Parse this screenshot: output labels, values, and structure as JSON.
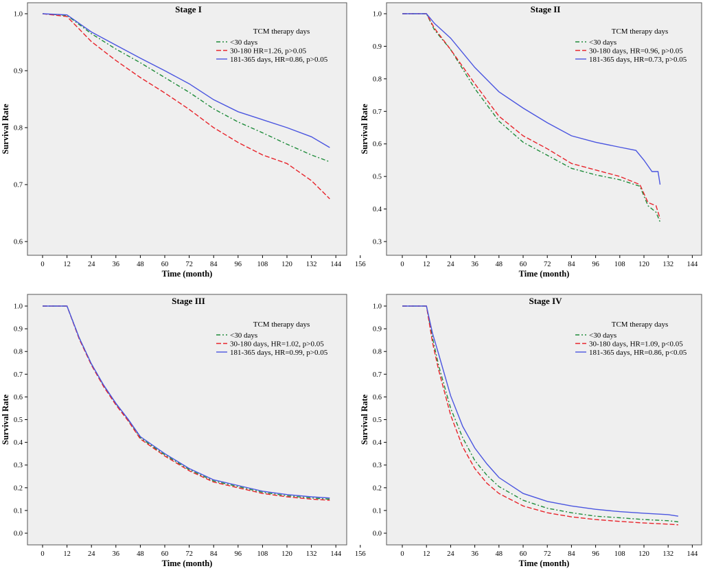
{
  "chart_data": [
    {
      "type": "line",
      "title": "Stage I",
      "xlabel": "Time (month)",
      "ylabel": "Survival Rate",
      "xlim": [
        0,
        156
      ],
      "xticks": [
        0,
        12,
        24,
        36,
        48,
        60,
        72,
        84,
        96,
        108,
        120,
        132,
        144,
        156
      ],
      "ylim": [
        0.6,
        1.0
      ],
      "yticks": [
        0.6,
        0.7,
        0.8,
        0.9,
        1.0
      ],
      "ytick_labels": [
        "0.6",
        "0.7",
        "0.8",
        "0.9",
        "1.0"
      ],
      "legend_title": "TCM therapy days",
      "series": [
        {
          "name": "<30 days",
          "color": "#1e8b3a",
          "dash": "dashdot",
          "x": [
            0,
            12,
            24,
            36,
            48,
            60,
            72,
            84,
            96,
            108,
            120,
            132,
            141
          ],
          "y": [
            1.0,
            0.997,
            0.965,
            0.938,
            0.914,
            0.888,
            0.862,
            0.833,
            0.81,
            0.791,
            0.771,
            0.752,
            0.74
          ]
        },
        {
          "name": "30-180 HR=1.26, p>0.05",
          "color": "#e8232a",
          "dash": "longdash",
          "x": [
            0,
            12,
            24,
            36,
            48,
            60,
            72,
            84,
            96,
            108,
            120,
            132,
            141
          ],
          "y": [
            1.0,
            0.995,
            0.951,
            0.918,
            0.888,
            0.861,
            0.832,
            0.8,
            0.774,
            0.752,
            0.737,
            0.707,
            0.675
          ]
        },
        {
          "name": "181-365 days, HR=0.86, p>0.05",
          "color": "#4a55e0",
          "dash": "solid",
          "x": [
            0,
            12,
            24,
            36,
            48,
            60,
            72,
            84,
            96,
            108,
            120,
            132,
            141
          ],
          "y": [
            1.0,
            0.998,
            0.968,
            0.945,
            0.922,
            0.9,
            0.877,
            0.849,
            0.828,
            0.814,
            0.8,
            0.784,
            0.765
          ]
        }
      ]
    },
    {
      "type": "line",
      "title": "Stage II",
      "xlabel": "Time (month)",
      "ylabel": "Survival Rate",
      "xlim": [
        0,
        144
      ],
      "xticks": [
        0,
        12,
        24,
        36,
        48,
        60,
        72,
        84,
        96,
        108,
        120,
        132,
        144
      ],
      "ylim": [
        0.3,
        1.0
      ],
      "yticks": [
        0.3,
        0.4,
        0.5,
        0.6,
        0.7,
        0.8,
        0.9,
        1.0
      ],
      "ytick_labels": [
        "0.3",
        "0.4",
        "0.5",
        "0.6",
        "0.7",
        "0.8",
        "0.9",
        "1.0"
      ],
      "legend_title": "TCM therapy days",
      "series": [
        {
          "name": "<30 days",
          "color": "#1e8b3a",
          "dash": "dashdot",
          "x": [
            0,
            12,
            16,
            24,
            36,
            48,
            60,
            72,
            84,
            96,
            108,
            118,
            122,
            126,
            128
          ],
          "y": [
            1.0,
            1.0,
            0.95,
            0.89,
            0.77,
            0.67,
            0.605,
            0.565,
            0.525,
            0.505,
            0.49,
            0.47,
            0.41,
            0.39,
            0.36
          ]
        },
        {
          "name": "30-180 days, HR=0.96, p>0.05",
          "color": "#e8232a",
          "dash": "longdash",
          "x": [
            0,
            12,
            16,
            24,
            36,
            48,
            60,
            72,
            84,
            96,
            108,
            118,
            122,
            126,
            128
          ],
          "y": [
            1.0,
            1.0,
            0.955,
            0.89,
            0.785,
            0.685,
            0.625,
            0.585,
            0.54,
            0.52,
            0.5,
            0.475,
            0.42,
            0.41,
            0.37
          ]
        },
        {
          "name": "181-365 days, HR=0.73, p>0.05",
          "color": "#4a55e0",
          "dash": "solid",
          "x": [
            0,
            12,
            16,
            24,
            36,
            48,
            60,
            72,
            84,
            96,
            108,
            116,
            120,
            124,
            127,
            128
          ],
          "y": [
            1.0,
            1.0,
            0.97,
            0.925,
            0.835,
            0.76,
            0.71,
            0.665,
            0.625,
            0.605,
            0.59,
            0.58,
            0.55,
            0.515,
            0.515,
            0.475
          ]
        }
      ]
    },
    {
      "type": "line",
      "title": "Stage III",
      "xlabel": "Time (month)",
      "ylabel": "Survival Rate",
      "xlim": [
        0,
        156
      ],
      "xticks": [
        0,
        12,
        24,
        36,
        48,
        60,
        72,
        84,
        96,
        108,
        120,
        132,
        144,
        156
      ],
      "ylim": [
        0.0,
        1.0
      ],
      "yticks": [
        0,
        0.1,
        0.2,
        0.3,
        0.4,
        0.5,
        0.6,
        0.7,
        0.8,
        0.9,
        1.0
      ],
      "ytick_labels": [
        "0.0",
        "0.1",
        "0.2",
        "0.3",
        "0.4",
        "0.5",
        "0.6",
        "0.7",
        "0.8",
        "0.9",
        "1.0"
      ],
      "legend_title": "TCM therapy days",
      "series": [
        {
          "name": "<30 days",
          "color": "#1e8b3a",
          "dash": "dashdot",
          "x": [
            0,
            12,
            18,
            24,
            30,
            36,
            42,
            48,
            60,
            72,
            84,
            96,
            108,
            120,
            132,
            141
          ],
          "y": [
            1.0,
            1.0,
            0.86,
            0.745,
            0.65,
            0.57,
            0.5,
            0.42,
            0.345,
            0.28,
            0.23,
            0.205,
            0.18,
            0.165,
            0.155,
            0.15
          ]
        },
        {
          "name": "30-180 days, HR=1.02, p>0.05",
          "color": "#e8232a",
          "dash": "longdash",
          "x": [
            0,
            12,
            18,
            24,
            30,
            36,
            42,
            48,
            60,
            72,
            84,
            96,
            108,
            120,
            132,
            141
          ],
          "y": [
            1.0,
            1.0,
            0.855,
            0.74,
            0.645,
            0.565,
            0.495,
            0.415,
            0.34,
            0.275,
            0.225,
            0.2,
            0.175,
            0.16,
            0.15,
            0.145
          ]
        },
        {
          "name": "181-365 days, HR=0.99, p>0.05",
          "color": "#4a55e0",
          "dash": "solid",
          "x": [
            0,
            12,
            18,
            24,
            30,
            36,
            42,
            48,
            60,
            72,
            84,
            96,
            108,
            120,
            132,
            141
          ],
          "y": [
            1.0,
            1.0,
            0.86,
            0.745,
            0.652,
            0.572,
            0.502,
            0.425,
            0.35,
            0.285,
            0.235,
            0.21,
            0.185,
            0.17,
            0.16,
            0.155
          ]
        }
      ]
    },
    {
      "type": "line",
      "title": "Stage IV",
      "xlabel": "Time (month)",
      "ylabel": "Survival Rate",
      "xlim": [
        0,
        144
      ],
      "xticks": [
        0,
        12,
        24,
        36,
        48,
        60,
        72,
        84,
        96,
        108,
        120,
        132,
        144
      ],
      "ylim": [
        0.0,
        1.0
      ],
      "yticks": [
        0,
        0.1,
        0.2,
        0.3,
        0.4,
        0.5,
        0.6,
        0.7,
        0.8,
        0.9,
        1.0
      ],
      "ytick_labels": [
        "0.0",
        "0.1",
        "0.2",
        "0.3",
        "0.4",
        "0.5",
        "0.6",
        "0.7",
        "0.8",
        "0.9",
        "1.0"
      ],
      "legend_title": "TCM therapy days",
      "series": [
        {
          "name": "<30 days",
          "color": "#1e8b3a",
          "dash": "dashdot",
          "x": [
            0,
            12,
            15,
            18,
            24,
            30,
            36,
            42,
            48,
            60,
            72,
            84,
            96,
            108,
            120,
            132,
            137
          ],
          "y": [
            1.0,
            1.0,
            0.86,
            0.74,
            0.55,
            0.42,
            0.32,
            0.255,
            0.205,
            0.145,
            0.11,
            0.09,
            0.075,
            0.068,
            0.06,
            0.055,
            0.05
          ]
        },
        {
          "name": "30-180 days, HR=1.09, p<0.05",
          "color": "#e8232a",
          "dash": "longdash",
          "x": [
            0,
            12,
            15,
            18,
            24,
            30,
            36,
            42,
            48,
            60,
            72,
            84,
            96,
            108,
            120,
            132,
            137
          ],
          "y": [
            1.0,
            1.0,
            0.84,
            0.72,
            0.52,
            0.38,
            0.285,
            0.22,
            0.175,
            0.12,
            0.09,
            0.072,
            0.06,
            0.052,
            0.045,
            0.04,
            0.037
          ]
        },
        {
          "name": "181-365 days, HR=0.86, p<0.05",
          "color": "#4a55e0",
          "dash": "solid",
          "x": [
            0,
            12,
            15,
            18,
            24,
            30,
            36,
            42,
            48,
            60,
            72,
            84,
            96,
            108,
            120,
            132,
            137
          ],
          "y": [
            1.0,
            1.0,
            0.88,
            0.79,
            0.605,
            0.47,
            0.375,
            0.305,
            0.245,
            0.175,
            0.14,
            0.12,
            0.105,
            0.095,
            0.088,
            0.082,
            0.075
          ]
        }
      ]
    }
  ]
}
